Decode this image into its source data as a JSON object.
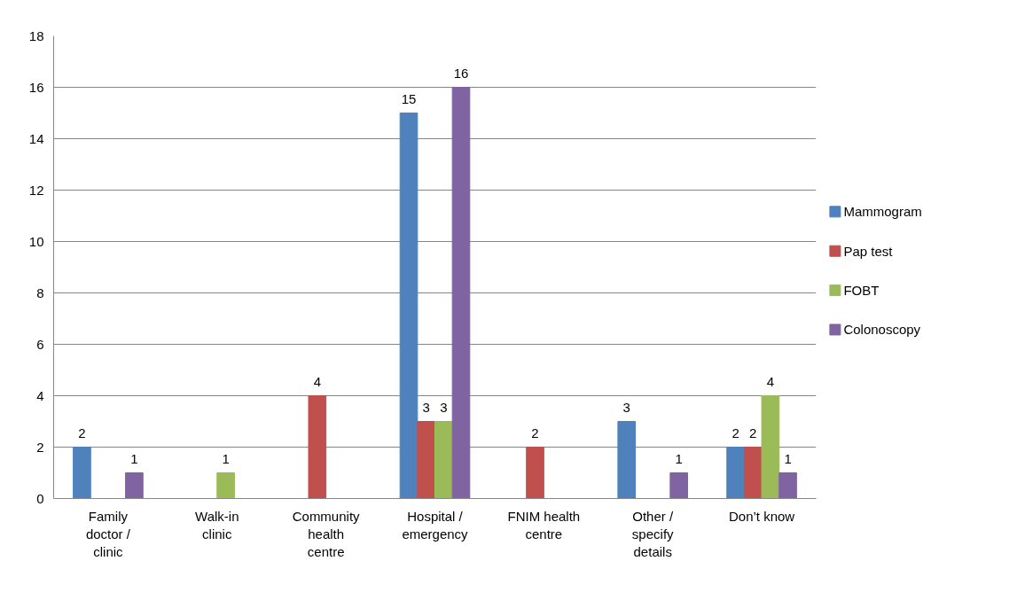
{
  "chart_data": {
    "type": "bar",
    "categories": [
      "Family doctor / clinic",
      "Walk-in clinic",
      "Community health centre",
      "Hospital / emergency",
      "FNIM health centre",
      "Other / specify details",
      "Don’t know"
    ],
    "series": [
      {
        "name": "Mammogram",
        "color": "#4f81bd",
        "values": [
          2,
          null,
          null,
          15,
          null,
          3,
          2
        ]
      },
      {
        "name": "Pap test",
        "color": "#c0504d",
        "values": [
          null,
          null,
          4,
          3,
          2,
          null,
          2
        ]
      },
      {
        "name": "FOBT",
        "color": "#9bbb59",
        "values": [
          null,
          1,
          null,
          3,
          null,
          null,
          4
        ]
      },
      {
        "name": "Colonoscopy",
        "color": "#8064a2",
        "values": [
          1,
          null,
          null,
          16,
          null,
          1,
          1
        ]
      }
    ],
    "ylim": [
      0,
      18
    ],
    "yticks": [
      0,
      2,
      4,
      6,
      8,
      10,
      12,
      14,
      16,
      18
    ],
    "grid": "y",
    "legend": "right",
    "data_labels": true
  }
}
